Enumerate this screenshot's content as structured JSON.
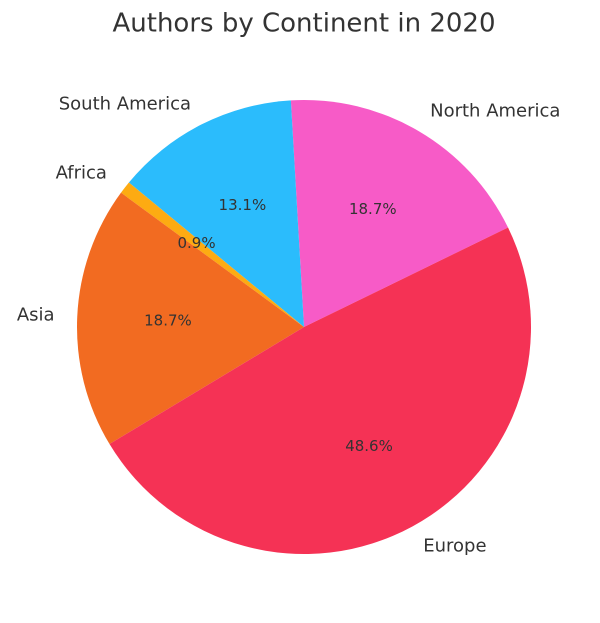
{
  "chart_data": {
    "type": "pie",
    "title": "Authors by Continent in 2020",
    "categories": [
      "North America",
      "South America",
      "Africa",
      "Asia",
      "Europe"
    ],
    "values": [
      18.7,
      13.1,
      0.9,
      18.7,
      48.6
    ],
    "value_labels": [
      "18.7%",
      "13.1%",
      "0.9%",
      "18.7%",
      "48.6%"
    ],
    "colors": [
      "#f75bc7",
      "#2bbcfc",
      "#fdab12",
      "#f26b21",
      "#f53255"
    ]
  }
}
